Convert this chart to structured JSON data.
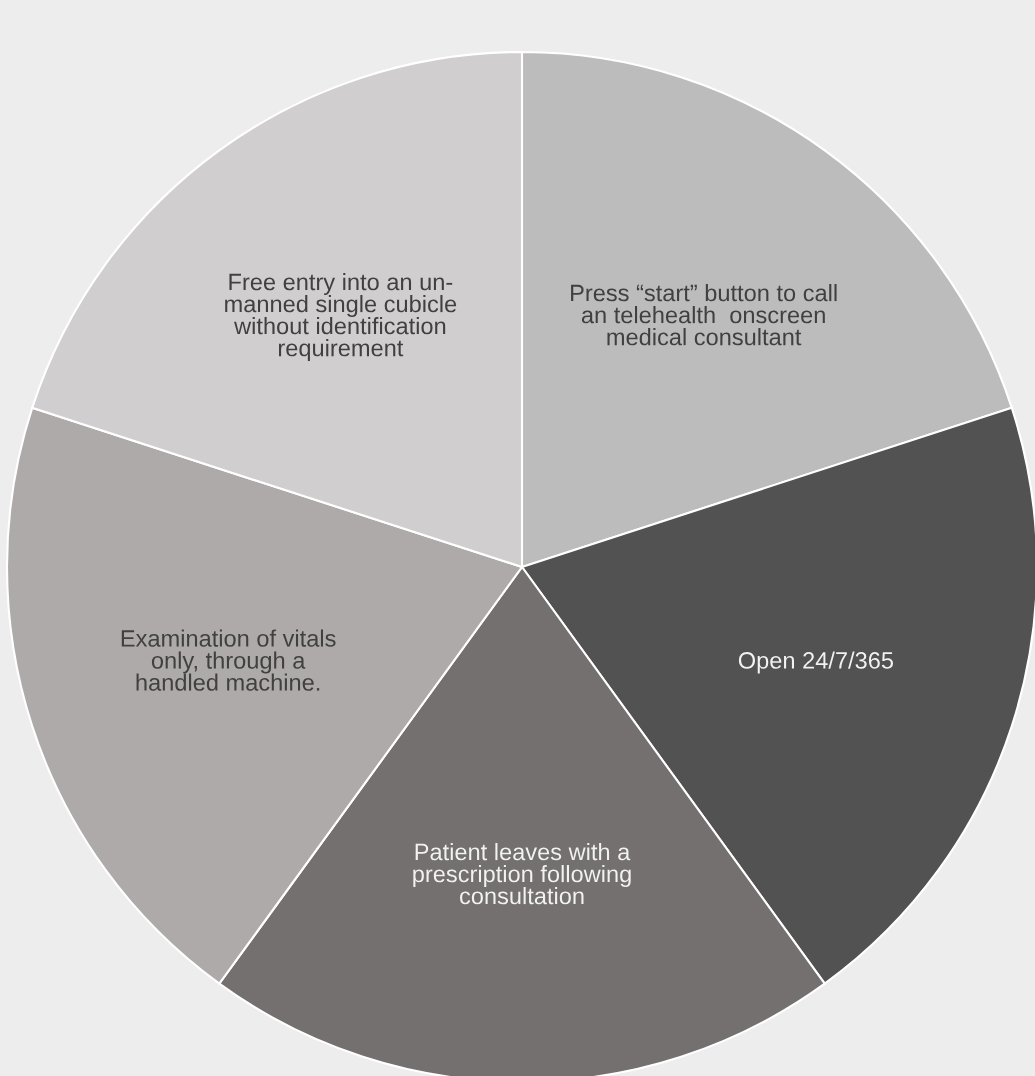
{
  "chart_data": {
    "type": "pie",
    "categories": [
      "Press “start” button to call\nan telehealth  onscreen\nmedical consultant",
      "Open 24/7/365",
      "Patient leaves with a\nprescription following\nconsultation",
      "Examination of vitals\nonly, through a\nhandled machine.",
      "Free entry into an un-\nmanned single cubicle\nwithout identification\nrequirement"
    ],
    "values": [
      20,
      20,
      20,
      20,
      20
    ],
    "colors": [
      "#bdbcbc",
      "#525252",
      "#74706f",
      "#aeaaa9",
      "#d0cecf"
    ]
  }
}
